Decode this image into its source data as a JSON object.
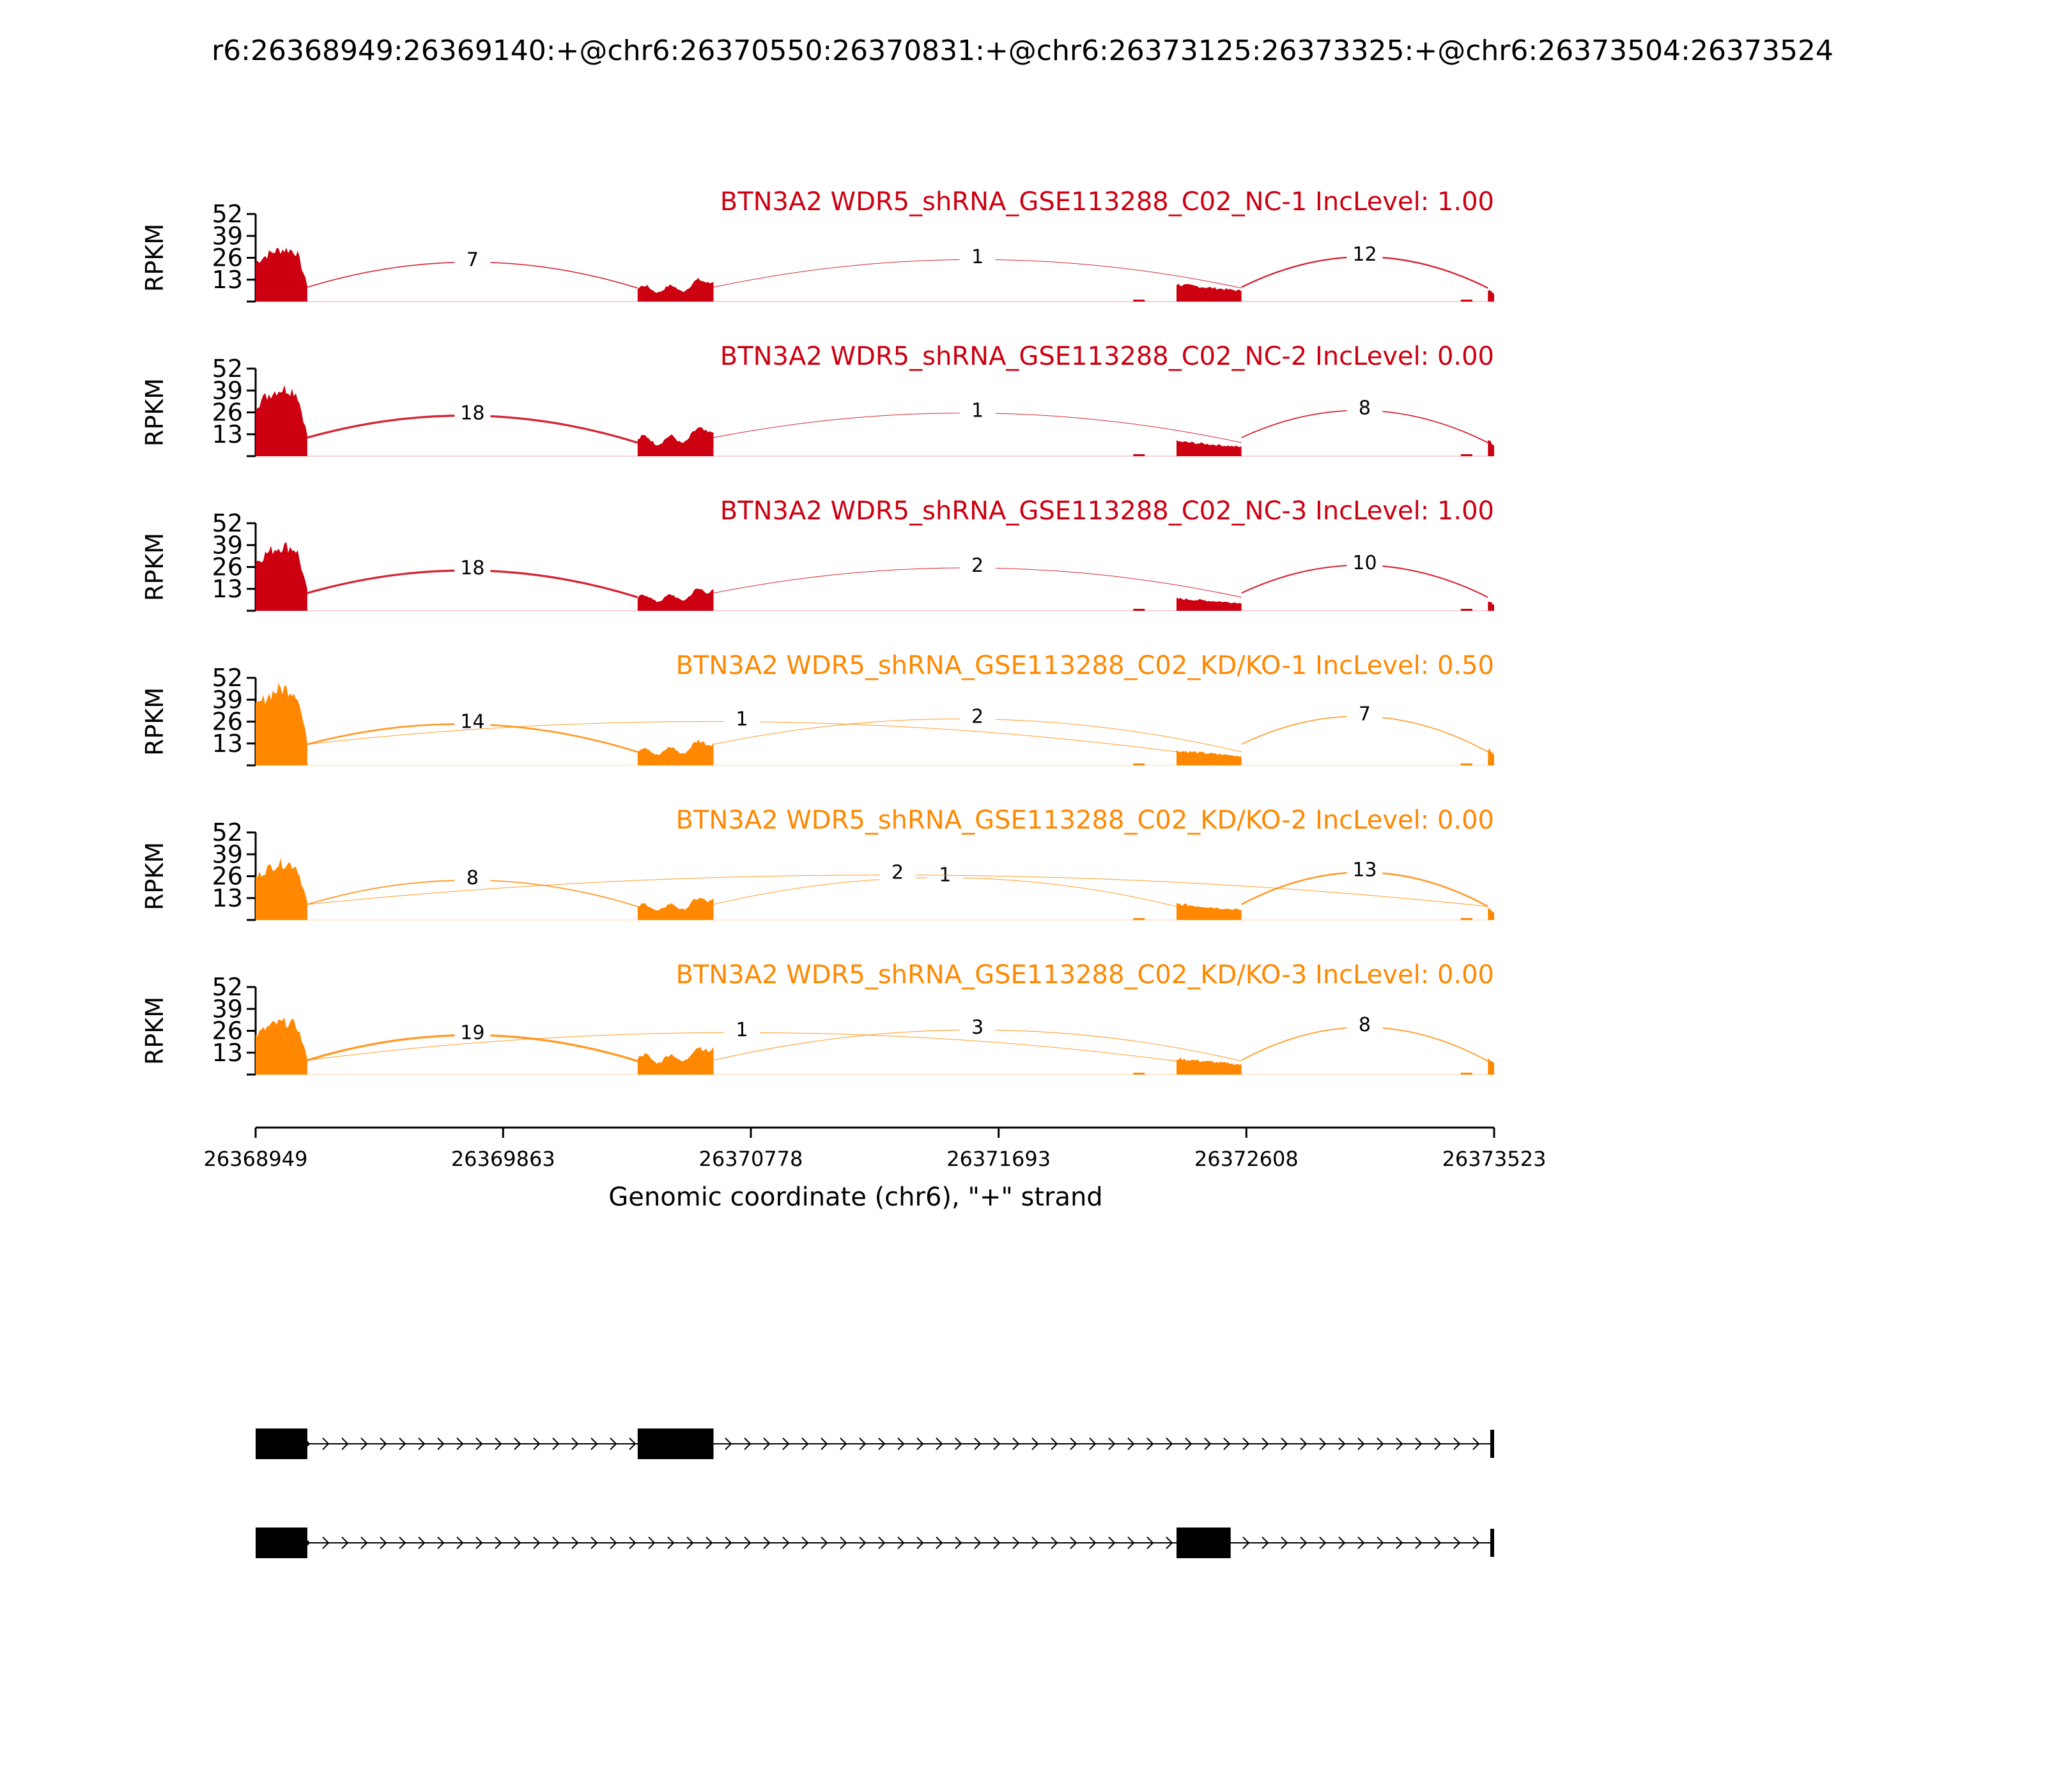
{
  "title": "r6:26368949:26369140:+@chr6:26370550:26370831:+@chr6:26373125:26373325:+@chr6:26373504:26373524",
  "chart_data": {
    "type": "area",
    "chart_kind": "sashimi plot",
    "xlabel": "Genomic coordinate (chr6), \"+\" strand",
    "ylabel": "RPKM",
    "xlim": [
      26368949,
      26373523
    ],
    "ylim": [
      0,
      52
    ],
    "yticks": [
      13,
      26,
      39,
      52
    ],
    "xticks": [
      26368949,
      26369863,
      26370778,
      26371693,
      26372608,
      26373523
    ],
    "colors": {
      "nc": "#cc0011",
      "kd": "#ff8800",
      "track": "#000000"
    },
    "exons": [
      [
        26368949,
        26369140
      ],
      [
        26370360,
        26370640
      ],
      [
        26372350,
        26372590
      ],
      [
        26373500,
        26373523
      ]
    ],
    "panels": [
      {
        "label": "BTN3A2 WDR5_shRNA_GSE113288_C02_NC-1 IncLevel: 1.00",
        "group": "nc",
        "peaks": [
          34,
          15,
          14,
          10
        ],
        "junctions": [
          {
            "label": "7",
            "from": 26369140,
            "to": 26370360
          },
          {
            "label": "1",
            "from": 26370640,
            "to": 26372590
          },
          {
            "label": "12",
            "from": 26372590,
            "to": 26373500
          }
        ]
      },
      {
        "label": "BTN3A2 WDR5_shRNA_GSE113288_C02_NC-2 IncLevel: 0.00",
        "group": "nc",
        "peaks": [
          44,
          19,
          12,
          14
        ],
        "junctions": [
          {
            "label": "18",
            "from": 26369140,
            "to": 26370360
          },
          {
            "label": "1",
            "from": 26370640,
            "to": 26372590
          },
          {
            "label": "8",
            "from": 26372590,
            "to": 26373500
          }
        ]
      },
      {
        "label": "BTN3A2 WDR5_shRNA_GSE113288_C02_NC-3 IncLevel: 1.00",
        "group": "nc",
        "peaks": [
          42,
          15,
          10,
          8
        ],
        "junctions": [
          {
            "label": "18",
            "from": 26369140,
            "to": 26370360
          },
          {
            "label": "2",
            "from": 26370640,
            "to": 26372590
          },
          {
            "label": "10",
            "from": 26372590,
            "to": 26373500
          }
        ]
      },
      {
        "label": "BTN3A2 WDR5_shRNA_GSE113288_C02_KD/KO-1 IncLevel: 0.50",
        "group": "kd",
        "peaks": [
          50,
          17,
          12,
          14
        ],
        "junctions": [
          {
            "label": "14",
            "from": 26369140,
            "to": 26370360
          },
          {
            "label": "1",
            "from": 26369140,
            "to": 26372350
          },
          {
            "label": "2",
            "from": 26370640,
            "to": 26372590
          },
          {
            "label": "7",
            "from": 26372590,
            "to": 26373500
          }
        ]
      },
      {
        "label": "BTN3A2 WDR5_shRNA_GSE113288_C02_KD/KO-2 IncLevel: 0.00",
        "group": "kd",
        "peaks": [
          37,
          15,
          13,
          10
        ],
        "junctions": [
          {
            "label": "8",
            "from": 26369140,
            "to": 26370360
          },
          {
            "label": "1",
            "from": 26370640,
            "to": 26372350
          },
          {
            "label": "2",
            "from": 26369140,
            "to": 26373500
          },
          {
            "label": "13",
            "from": 26372590,
            "to": 26373500
          }
        ]
      },
      {
        "label": "BTN3A2 WDR5_shRNA_GSE113288_C02_KD/KO-3 IncLevel: 0.00",
        "group": "kd",
        "peaks": [
          34,
          19,
          13,
          14
        ],
        "junctions": [
          {
            "label": "19",
            "from": 26369140,
            "to": 26370360
          },
          {
            "label": "1",
            "from": 26369140,
            "to": 26372350
          },
          {
            "label": "3",
            "from": 26370640,
            "to": 26372590
          },
          {
            "label": "8",
            "from": 26372590,
            "to": 26373500
          }
        ]
      }
    ],
    "isoforms": [
      {
        "exons": [
          [
            26368949,
            26369140
          ],
          [
            26370360,
            26370640
          ],
          [
            26373510,
            26373523
          ]
        ]
      },
      {
        "exons": [
          [
            26368949,
            26369140
          ],
          [
            26372350,
            26372550
          ],
          [
            26373510,
            26373523
          ]
        ]
      }
    ]
  }
}
